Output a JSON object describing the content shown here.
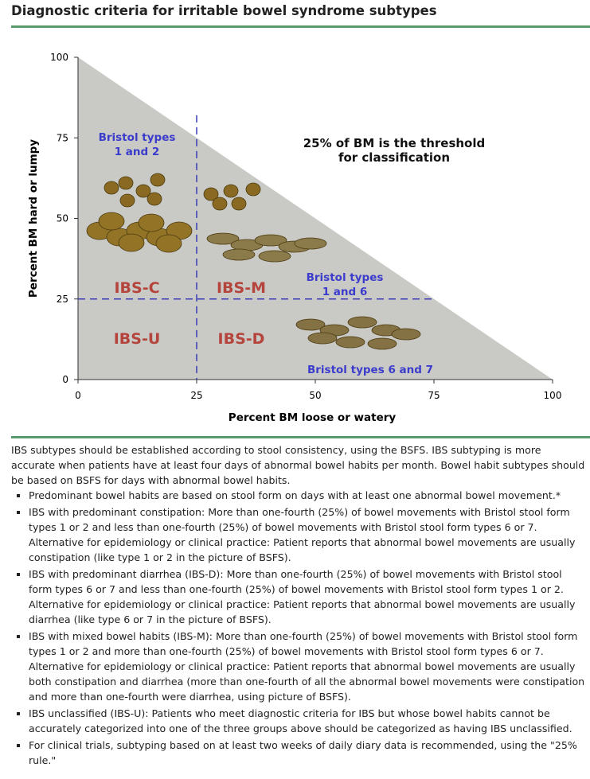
{
  "header": {
    "title": "Diagnostic criteria for irritable bowel syndrome subtypes"
  },
  "chart_data": {
    "type": "region",
    "xlabel": "Percent BM loose or watery",
    "ylabel": "Percent BM hard or lumpy",
    "xlim": [
      0,
      100
    ],
    "ylim": [
      0,
      100
    ],
    "xticks": [
      0,
      25,
      50,
      75,
      100
    ],
    "yticks": [
      0,
      25,
      50,
      75,
      100
    ],
    "x_threshold": 25,
    "y_threshold": 25,
    "note": [
      "25% of BM is the threshold",
      "for classification"
    ],
    "bristol_labels": [
      [
        "Bristol types",
        "1 and 2"
      ],
      [
        "Bristol types",
        "1 and 6"
      ],
      [
        "Bristol types 6 and 7"
      ]
    ],
    "subtypes": [
      "IBS-C",
      "IBS-M",
      "IBS-U",
      "IBS-D"
    ]
  },
  "text": {
    "intro": "IBS subtypes should be established according to stool consistency, using the BSFS. IBS subtyping is more accurate when patients have at least four days of abnormal bowel habits per month. Bowel habit subtypes should be based on BSFS for days with abnormal bowel habits.",
    "bullets": [
      "Predominant bowel habits are based on stool form on days with at least one abnormal bowel movement.*",
      "IBS with predominant constipation: More than one-fourth (25%) of bowel movements with Bristol stool form types 1 or 2 and less than one-fourth (25%) of bowel movements with Bristol stool form types 6 or 7. Alternative for epidemiology or clinical practice: Patient reports that abnormal bowel movements are usually constipation (like type 1 or 2 in the picture of BSFS).",
      "IBS with predominant diarrhea (IBS-D): More than one-fourth (25%) of bowel movements with Bristol stool form types 6 or 7 and less than one-fourth (25%) of bowel movements with Bristol stool form types 1 or 2. Alternative for epidemiology or clinical practice: Patient reports that abnormal bowel movements are usually diarrhea (like type 6 or 7 in the picture of BSFS).",
      "IBS with mixed bowel habits (IBS-M): More than one-fourth (25%) of bowel movements with Bristol stool form types 1 or 2 and more than one-fourth (25%) of bowel movements with Bristol stool form types 6 or 7. Alternative for epidemiology or clinical practice: Patient reports that abnormal bowel movements are usually both constipation and diarrhea (more than one-fourth of all the abnormal bowel movements were constipation and more than one-fourth were diarrhea, using picture of BSFS).",
      "IBS unclassified (IBS-U): Patients who meet diagnostic criteria for IBS but whose bowel habits cannot be accurately categorized into one of the three groups above should be categorized as having IBS unclassified.",
      "For clinical trials, subtyping based on at least two weeks of daily diary data is recommended, using the \"25% rule.\""
    ]
  }
}
